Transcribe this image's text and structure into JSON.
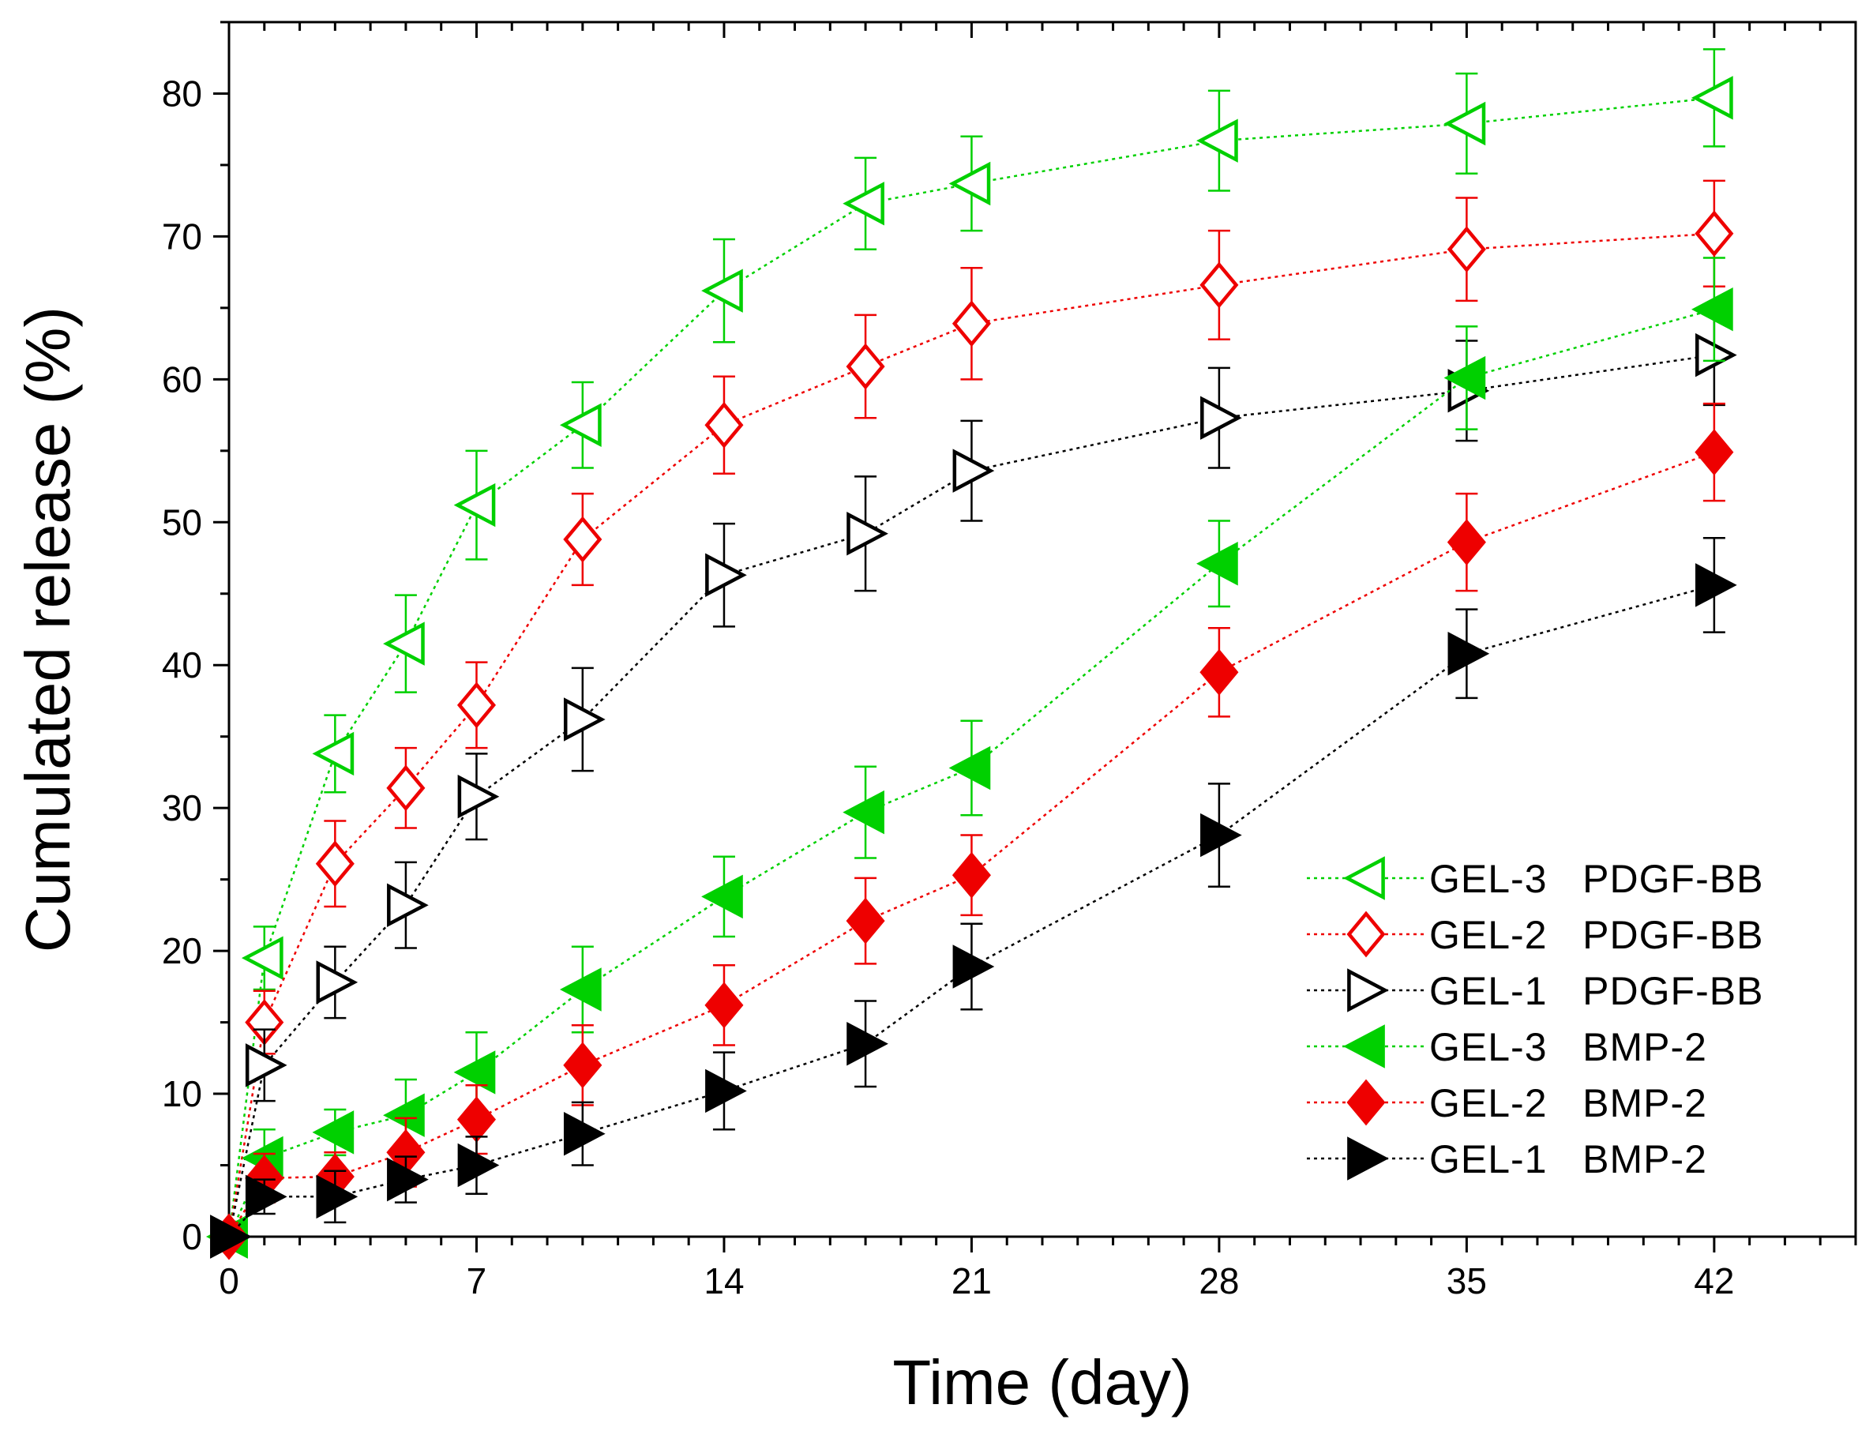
{
  "chart_data": {
    "type": "line",
    "xlabel": "Time (day)",
    "ylabel": "Cumulated release (%)",
    "xlim": [
      0,
      46
    ],
    "ylim": [
      0,
      85
    ],
    "x_ticks": [
      0,
      7,
      14,
      21,
      28,
      35,
      42
    ],
    "y_ticks": [
      0,
      10,
      20,
      30,
      40,
      50,
      60,
      70,
      80
    ],
    "legend_position": "bottom-right",
    "grid": false,
    "x": [
      0,
      1,
      3,
      5,
      7,
      10,
      14,
      18,
      21,
      28,
      35,
      42
    ],
    "series": [
      {
        "name": "GEL-3   PDGF-BB",
        "color": "#00d000",
        "marker": "triangle-left",
        "filled": false,
        "values": [
          0,
          19.5,
          33.8,
          41.5,
          51.2,
          56.8,
          66.2,
          72.3,
          73.7,
          76.7,
          77.9,
          79.7
        ],
        "errors": [
          0,
          2.2,
          2.7,
          3.4,
          3.8,
          3.0,
          3.6,
          3.2,
          3.3,
          3.5,
          3.5,
          3.4
        ]
      },
      {
        "name": "GEL-2   PDGF-BB",
        "color": "#ee0000",
        "marker": "diamond",
        "filled": false,
        "values": [
          0,
          15.0,
          26.1,
          31.4,
          37.2,
          48.8,
          56.8,
          60.9,
          63.9,
          66.6,
          69.1,
          70.2
        ],
        "errors": [
          0,
          2.2,
          3.0,
          2.8,
          3.0,
          3.2,
          3.4,
          3.6,
          3.9,
          3.8,
          3.6,
          3.7
        ]
      },
      {
        "name": "GEL-1   PDGF-BB",
        "color": "#000000",
        "marker": "triangle-right",
        "filled": false,
        "values": [
          0,
          12.0,
          17.8,
          23.2,
          30.8,
          36.2,
          46.3,
          49.2,
          53.6,
          57.3,
          59.2,
          61.7
        ],
        "errors": [
          0,
          2.5,
          2.5,
          3.0,
          3.0,
          3.6,
          3.6,
          4.0,
          3.5,
          3.5,
          3.5,
          3.5
        ]
      },
      {
        "name": "GEL-3   BMP-2",
        "color": "#00d000",
        "marker": "triangle-left",
        "filled": true,
        "values": [
          0,
          5.5,
          7.3,
          8.5,
          11.5,
          17.3,
          23.8,
          29.7,
          32.8,
          47.1,
          60.1,
          64.9
        ],
        "errors": [
          0,
          2.0,
          1.6,
          2.5,
          2.8,
          3.0,
          2.8,
          3.2,
          3.3,
          3.0,
          3.6,
          3.6
        ]
      },
      {
        "name": "GEL-2   BMP-2",
        "color": "#ee0000",
        "marker": "diamond",
        "filled": true,
        "values": [
          0,
          4.1,
          4.2,
          5.9,
          8.2,
          12.0,
          16.2,
          22.1,
          25.3,
          39.5,
          48.6,
          54.9
        ],
        "errors": [
          0,
          1.7,
          1.7,
          2.4,
          2.4,
          2.8,
          2.8,
          3.0,
          2.8,
          3.1,
          3.4,
          3.4
        ]
      },
      {
        "name": "GEL-1   BMP-2",
        "color": "#000000",
        "marker": "triangle-right",
        "filled": true,
        "values": [
          0,
          2.8,
          2.8,
          4.0,
          5.0,
          7.2,
          10.2,
          13.5,
          18.9,
          28.1,
          40.8,
          45.6
        ],
        "errors": [
          0,
          1.2,
          1.8,
          1.6,
          2.0,
          2.2,
          2.7,
          3.0,
          3.0,
          3.6,
          3.1,
          3.3
        ]
      }
    ]
  }
}
